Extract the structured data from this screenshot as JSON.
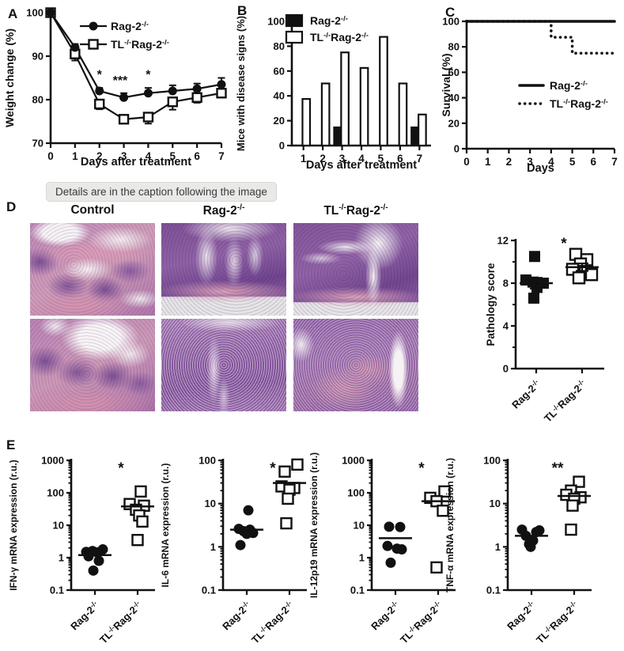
{
  "panels": {
    "A": "A",
    "B": "B",
    "C": "C",
    "D": "D",
    "E": "E"
  },
  "tooltip": "Details are in the caption following the image",
  "histology": {
    "columns": [
      "Control",
      "Rag-2-/-",
      "TL-/-Rag-2-/-"
    ]
  },
  "chart_data": [
    {
      "id": "weight",
      "type": "line",
      "title": "",
      "xlabel": "Days after treatment",
      "ylabel": "Weight change (%)",
      "xlim": [
        0,
        7
      ],
      "ylim": [
        70,
        100
      ],
      "xticks": [
        0,
        1,
        2,
        3,
        4,
        5,
        6,
        7
      ],
      "yticks": [
        70,
        80,
        90,
        100
      ],
      "x": [
        0,
        1,
        2,
        3,
        4,
        5,
        6,
        7
      ],
      "series": [
        {
          "name": "Rag-2-/-",
          "marker": "circle-filled",
          "values": [
            100,
            92,
            82,
            80.5,
            81.5,
            82,
            82.5,
            83.5
          ],
          "errors": [
            0,
            0.8,
            0.7,
            1.0,
            1.2,
            1.3,
            1.2,
            1.5
          ],
          "error_dir": "up"
        },
        {
          "name": "TL-/-Rag-2-/-",
          "marker": "square-open",
          "values": [
            100,
            90.5,
            79,
            75.5,
            76,
            79.5,
            80.5,
            81.5
          ],
          "errors": [
            0,
            1.5,
            1.2,
            0.8,
            1.5,
            1.8,
            1.2,
            1.0
          ],
          "error_dir": "down"
        }
      ],
      "annotations": [
        {
          "text": "*",
          "x": 2,
          "y": 84.8
        },
        {
          "text": "***",
          "x": 2.85,
          "y": 83.5
        },
        {
          "text": "*",
          "x": 4,
          "y": 84.8
        }
      ],
      "legend_position": "top-inside"
    },
    {
      "id": "disease",
      "type": "bar",
      "title": "",
      "xlabel": "Days after treatment",
      "ylabel": "Mice with disease signs (%)",
      "categories": [
        1,
        2,
        3,
        4,
        5,
        6,
        7
      ],
      "ylim": [
        0,
        100
      ],
      "yticks": [
        0,
        20,
        40,
        60,
        80,
        100
      ],
      "series": [
        {
          "name": "Rag-2-/-",
          "fill": "black",
          "values": [
            0,
            0,
            15,
            0,
            0,
            0,
            15
          ]
        },
        {
          "name": "TL-/-Rag-2-/-",
          "fill": "white",
          "values": [
            37.5,
            50,
            75,
            62.5,
            87.5,
            50,
            25
          ]
        }
      ],
      "legend_position": "top-left-inside"
    },
    {
      "id": "survival",
      "type": "step",
      "title": "",
      "xlabel": "Days",
      "ylabel": "Survival (%)",
      "xlim": [
        0,
        7
      ],
      "ylim": [
        0,
        100
      ],
      "xticks": [
        0,
        1,
        2,
        3,
        4,
        5,
        6,
        7
      ],
      "yticks": [
        0,
        20,
        40,
        60,
        80,
        100
      ],
      "series": [
        {
          "name": "Rag-2-/-",
          "style": "solid",
          "points": [
            [
              0,
              100
            ],
            [
              7,
              100
            ]
          ]
        },
        {
          "name": "TL-/-Rag-2-/-",
          "style": "dotted",
          "points": [
            [
              0,
              100
            ],
            [
              4,
              100
            ],
            [
              4,
              87.5
            ],
            [
              5,
              87.5
            ],
            [
              5,
              75
            ],
            [
              7,
              75
            ]
          ]
        }
      ],
      "legend_position": "middle-inside"
    },
    {
      "id": "pathology",
      "type": "scatter-cat",
      "scale": "linear",
      "title": "",
      "ylabel": "Pathology score",
      "ylim": [
        0,
        12
      ],
      "yticks": [
        0,
        4,
        8,
        12
      ],
      "yminor": 2,
      "sig": "*",
      "groups": [
        {
          "label": "Rag-2-/-",
          "marker": "square-filled",
          "values": [
            10.5,
            8.3,
            8.1,
            8.0,
            7.6,
            6.6
          ],
          "dx": [
            -2,
            -13,
            -4,
            9,
            1,
            -3
          ],
          "center": 8.0,
          "err": 0.5
        },
        {
          "label": "TL-/-Rag-2-/-",
          "marker": "square-open",
          "values": [
            10.7,
            10.2,
            9.8,
            9.3,
            9.1,
            8.8,
            8.5
          ],
          "dx": [
            -8,
            6,
            -2,
            -12,
            4,
            12,
            -4
          ],
          "center": 9.5,
          "err": 0.35
        }
      ]
    },
    {
      "id": "ifn",
      "type": "scatter-cat",
      "scale": "log",
      "title": "",
      "ylabel": "IFN-γ mRNA expression (r.u.)",
      "ylim": [
        0.1,
        1000
      ],
      "yticks": [
        0.1,
        1,
        10,
        100,
        1000
      ],
      "sig": "*",
      "groups": [
        {
          "label": "Rag-2-/-",
          "marker": "circle-filled",
          "values": [
            1.8,
            1.6,
            1.5,
            1.45,
            1.1,
            0.8,
            0.4
          ],
          "dx": [
            10,
            -3,
            -11,
            3,
            -8,
            5,
            -2
          ],
          "center": 1.2
        },
        {
          "label": "TL-/-Rag-2-/-",
          "marker": "square-open",
          "values": [
            110,
            45,
            40,
            30,
            20,
            13,
            3.5
          ],
          "dx": [
            4,
            -10,
            8,
            -2,
            2,
            6,
            0
          ],
          "center": 38
        }
      ]
    },
    {
      "id": "il6",
      "type": "scatter-cat",
      "scale": "log",
      "title": "",
      "ylabel": "IL-6 mRNA expression (r.u.)",
      "ylim": [
        0.1,
        100
      ],
      "yticks": [
        0.1,
        1,
        10,
        100
      ],
      "sig": "*",
      "groups": [
        {
          "label": "Rag-2-/-",
          "marker": "circle-filled",
          "values": [
            7,
            2.6,
            2.5,
            2.3,
            2.1,
            2.0,
            1.1
          ],
          "dx": [
            2,
            -10,
            4,
            -4,
            8,
            0,
            -8
          ],
          "center": 2.5
        },
        {
          "label": "TL-/-Rag-2-/-",
          "marker": "square-open",
          "values": [
            80,
            55,
            25,
            23,
            21,
            13,
            3.5
          ],
          "dx": [
            10,
            -6,
            -10,
            6,
            0,
            -2,
            -4
          ],
          "center": 30
        }
      ]
    },
    {
      "id": "il12",
      "type": "scatter-cat",
      "scale": "log",
      "title": "",
      "ylabel": "IL-12p19 mRNA expression (r.u.)",
      "ylim": [
        0.1,
        1000
      ],
      "yticks": [
        0.1,
        1,
        10,
        100,
        1000
      ],
      "sig": "*",
      "groups": [
        {
          "label": "Rag-2-/-",
          "marker": "circle-filled",
          "values": [
            9,
            8.8,
            2.3,
            1.9,
            1.8,
            0.7
          ],
          "dx": [
            -8,
            6,
            -10,
            2,
            8,
            -6
          ],
          "center": 4
        },
        {
          "label": "TL-/-Rag-2-/-",
          "marker": "square-open",
          "values": [
            110,
            70,
            55,
            28,
            0.5
          ],
          "dx": [
            8,
            -10,
            -2,
            6,
            -2
          ],
          "center": 55
        }
      ]
    },
    {
      "id": "tnf",
      "type": "scatter-cat",
      "scale": "log",
      "title": "",
      "ylabel": "TNF-α mRNA expression (r.u.)",
      "ylim": [
        0.1,
        100
      ],
      "yticks": [
        0.1,
        1,
        10,
        100
      ],
      "sig": "**",
      "groups": [
        {
          "label": "Rag-2-/-",
          "marker": "circle-filled",
          "values": [
            2.5,
            2.4,
            2.2,
            1.8,
            1.4,
            1.15,
            1.0
          ],
          "dx": [
            -12,
            10,
            6,
            -7,
            2,
            -3,
            -1
          ],
          "center": 1.8
        },
        {
          "label": "TL-/-Rag-2-/-",
          "marker": "square-open",
          "values": [
            32,
            20,
            16,
            14,
            13,
            9,
            2.5
          ],
          "dx": [
            6,
            -4,
            -10,
            8,
            0,
            -2,
            -4
          ],
          "center": 15
        }
      ]
    }
  ]
}
